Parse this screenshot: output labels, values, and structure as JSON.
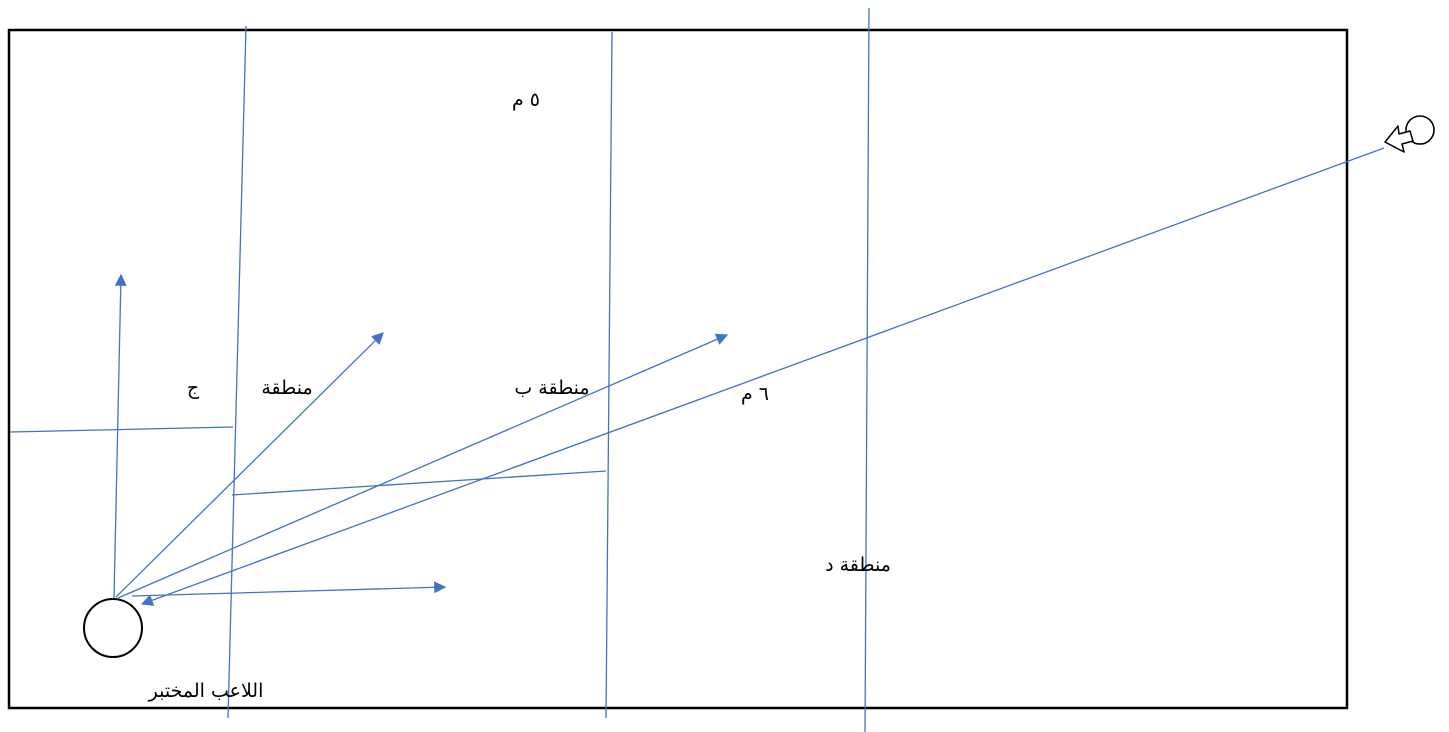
{
  "labels": {
    "distance_5m": "٥ م",
    "distance_6m": "٦ م",
    "zone_c_word": "منطقة",
    "zone_c_letter": "ج",
    "zone_b": "منطقة ب",
    "zone_d": "منطقة د",
    "tested_player": "اللاعب المختبر"
  },
  "colors": {
    "border": "#000000",
    "lines": "#4472C4",
    "text": "#000000"
  },
  "icons": [
    "player-circle-icon",
    "target-circle-icon",
    "hollow-arrow-icon"
  ]
}
